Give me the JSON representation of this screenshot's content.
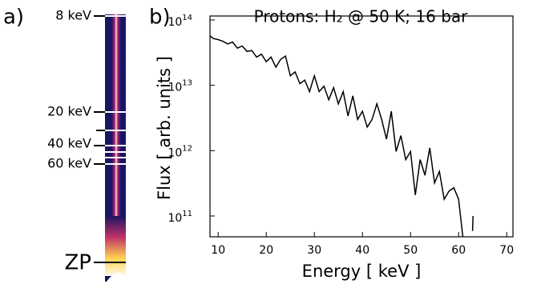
{
  "panel_a": {
    "label": "a)",
    "markers": [
      "8 keV",
      "20 keV",
      "40 keV",
      "60 keV",
      "ZP"
    ]
  },
  "chart_data": {
    "type": "line",
    "panel_label": "b)",
    "title": "Protons: H₂ @ 50 K; 16 bar",
    "x_label": "Energy [ keV ]",
    "y_label": "Flux [ arb. units ]",
    "color": "#000000",
    "log_y": true,
    "xlim": [
      8.3,
      71.3
    ],
    "xticks": [
      10,
      20,
      30,
      40,
      50,
      60,
      70
    ],
    "ylim": [
      48000000000.0,
      115000000000000.0
    ],
    "yticks": [
      {
        "value": 100000000000.0,
        "label": "10",
        "exponent": "11"
      },
      {
        "value": 1000000000000.0,
        "label": "10",
        "exponent": "12"
      },
      {
        "value": 10000000000000.0,
        "label": "10",
        "exponent": "13"
      },
      {
        "value": 100000000000000.0,
        "label": "10",
        "exponent": "14"
      }
    ],
    "x": [
      8.3,
      9,
      10,
      11,
      12,
      13,
      14,
      15,
      16,
      17,
      18,
      19,
      20,
      21,
      22,
      23,
      24,
      25,
      26,
      27,
      28,
      29,
      30,
      31,
      32,
      33,
      34,
      35,
      36,
      37,
      38,
      39,
      40,
      41,
      42,
      43,
      44,
      45,
      46,
      47,
      48,
      49,
      50,
      51,
      52,
      53,
      54,
      55,
      56,
      57,
      58,
      59,
      60,
      61,
      62,
      62.9,
      63
    ],
    "values": [
      57000000000000.0,
      52000000000000.0,
      50000000000000.0,
      47000000000000.0,
      43000000000000.0,
      46000000000000.0,
      37000000000000.0,
      40000000000000.0,
      33000000000000.0,
      34000000000000.0,
      27000000000000.0,
      30000000000000.0,
      23000000000000.0,
      27000000000000.0,
      19000000000000.0,
      25000000000000.0,
      28000000000000.0,
      14000000000000.0,
      16000000000000.0,
      10600000000000.0,
      12000000000000.0,
      8000000000000.0,
      14000000000000.0,
      8000000000000.0,
      9700000000000.0,
      6000000000000.0,
      9200000000000.0,
      5200000000000.0,
      8000000000000.0,
      3400000000000.0,
      6900000000000.0,
      3000000000000.0,
      4000000000000.0,
      2300000000000.0,
      3000000000000.0,
      5200000000000.0,
      3000000000000.0,
      1500000000000.0,
      4000000000000.0,
      970000000000.0,
      1700000000000.0,
      730000000000.0,
      970000000000.0,
      210000000000.0,
      730000000000.0,
      420000000000.0,
      1100000000000.0,
      320000000000.0,
      480000000000.0,
      180000000000.0,
      240000000000.0,
      270000000000.0,
      180000000000.0,
      40000000000.0,
      null,
      59000000000.0,
      100000000000.0
    ]
  }
}
